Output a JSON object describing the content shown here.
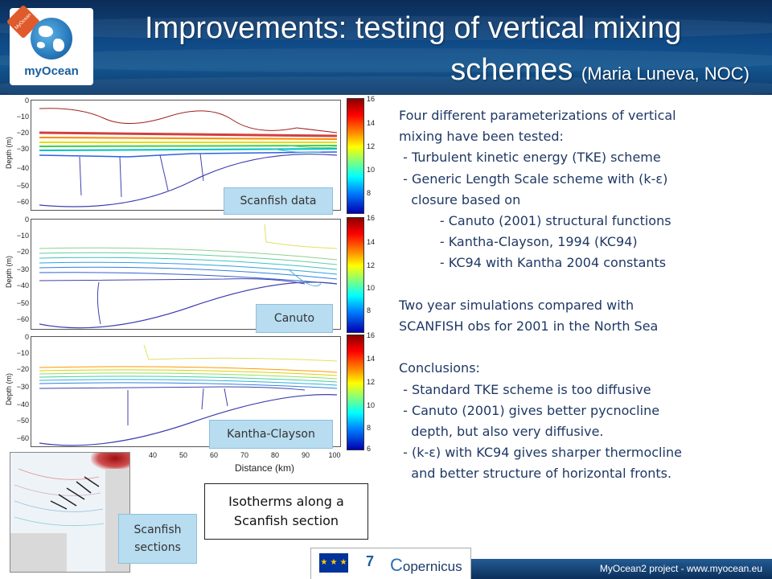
{
  "header": {
    "title_line1": "Improvements: testing of vertical mixing",
    "title_line2": "schemes",
    "author": "(Maria Luneva, NOC)",
    "logo_text": "myOcean",
    "logo_ribbon": "MyOcean 2"
  },
  "figure": {
    "y_axis_label": "Depth (m)",
    "y_ticks": [
      "0",
      "−10",
      "−20",
      "−30",
      "−40",
      "−50",
      "−60"
    ],
    "x_ticks": [
      "40",
      "50",
      "60",
      "70",
      "80",
      "90",
      "100"
    ],
    "x_axis_label": "Distance (km)",
    "colorbar_ticks": [
      "16",
      "14",
      "12",
      "10",
      "8",
      "6"
    ],
    "panels": [
      {
        "label": "Scanfish data"
      },
      {
        "label": "Canuto"
      },
      {
        "label": "Kantha-Clayson"
      }
    ],
    "inset_label_line1": "Scanfish",
    "inset_label_line2": "sections",
    "caption_line1": "Isotherms along a",
    "caption_line2": "Scanfish section"
  },
  "text": {
    "lines": [
      "Four different parameterizations of vertical",
      "mixing have been tested:",
      " - Turbulent kinetic energy (TKE) scheme",
      " - Generic Length Scale scheme with (k-ε)",
      "   closure based on",
      "          - Canuto (2001) structural functions",
      "          - Kantha-Clayson, 1994 (KC94)",
      "          - KC94 with Kantha 2004 constants",
      "",
      "Two year simulations compared with",
      "SCANFISH obs for 2001 in the North Sea",
      "",
      "Conclusions:",
      " - Standard TKE scheme is too diffusive",
      " - Canuto (2001) gives better pycnocline",
      "   depth, but also very diffusive.",
      " - (k-ε) with KC94 gives sharper thermocline",
      "   and better structure of horizontal fronts."
    ]
  },
  "footer": {
    "eu_flag": "★ ★ ★",
    "fp7": "7",
    "copernicus": "opernicus",
    "project": "MyOcean2 project - www.myocean.eu"
  }
}
